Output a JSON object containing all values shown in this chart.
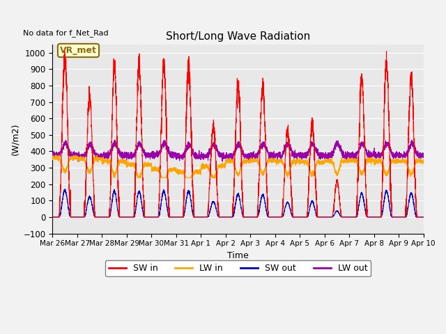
{
  "title": "Short/Long Wave Radiation",
  "xlabel": "Time",
  "ylabel": "(W/m2)",
  "ylim": [
    -100,
    1050
  ],
  "top_text": "No data for f_Net_Rad",
  "legend_label": "VR_met",
  "x_tick_labels": [
    "Mar 26",
    "Mar 27",
    "Mar 28",
    "Mar 29",
    "Mar 30",
    "Mar 31",
    "Apr 1",
    "Apr 2",
    "Apr 3",
    "Apr 4",
    "Apr 5",
    "Apr 6",
    "Apr 7",
    "Apr 8",
    "Apr 9",
    "Apr 10"
  ],
  "colors": {
    "SW_in": "#ff0000",
    "LW_in": "#ffa500",
    "SW_out": "#0000cc",
    "LW_out": "#9900aa"
  },
  "fig_bg": "#f2f2f2",
  "plot_bg": "#e8e8e8",
  "grid_color": "#ffffff"
}
